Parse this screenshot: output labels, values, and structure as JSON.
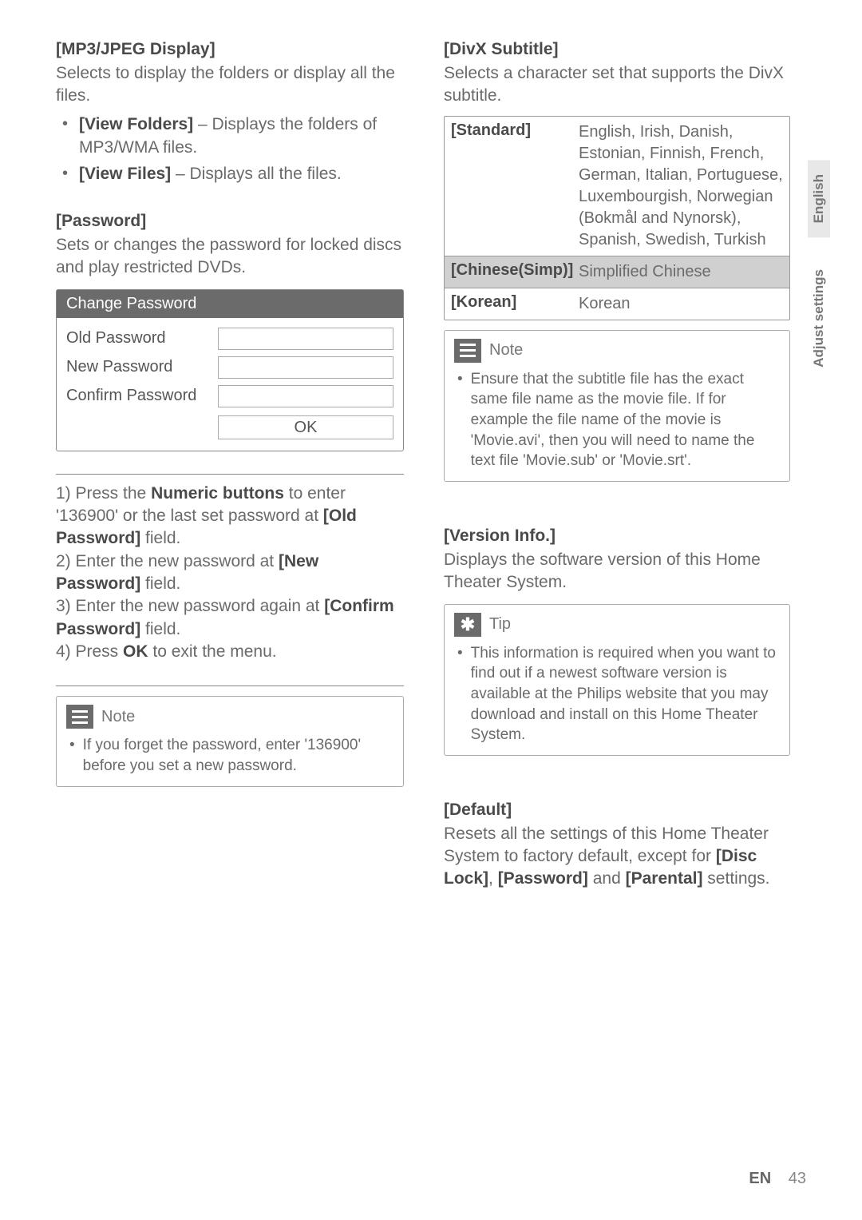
{
  "col_left": {
    "mp3jpeg": {
      "title": "[MP3/JPEG Display]",
      "desc": "Selects to display the folders or display all the files.",
      "items": [
        {
          "bold": "[View Folders]",
          "rest": " – Displays the folders of MP3/WMA files."
        },
        {
          "bold": "[View Files]",
          "rest": " – Displays all the files."
        }
      ]
    },
    "password": {
      "title": "[Password]",
      "desc": "Sets or changes the password for locked discs and play restricted DVDs.",
      "box_header": "Change Password",
      "rows": [
        "Old Password",
        "New Password",
        "Confirm Password"
      ],
      "ok": "OK"
    },
    "steps": {
      "s1": "1) Press the ",
      "s1b": "Numeric buttons",
      "s1c": " to enter '136900' or the last set password at ",
      "s1d": "[Old Password]",
      "s1e": " field.",
      "s2": "2) Enter the new password at ",
      "s2b": "[New Password]",
      "s2c": " field.",
      "s3": "3) Enter the new password again at ",
      "s3b": "[Confirm Password]",
      "s3c": " field.",
      "s4": "4) Press ",
      "s4b": "OK",
      "s4c": " to exit the menu."
    },
    "note": {
      "label": "Note",
      "text": "If you forget the password, enter '136900' before you set a new password."
    }
  },
  "col_right": {
    "divx": {
      "title": "[DivX Subtitle]",
      "desc": "Selects a character set that supports the DivX subtitle.",
      "rows": [
        {
          "k": "[Standard]",
          "v": "English, Irish, Danish, Estonian, Finnish, French, German, Italian, Portuguese, Luxembourgish, Norwegian (Bokmål and Nynorsk), Spanish, Swedish, Turkish"
        },
        {
          "k": "[Chinese(Simp)]",
          "v": "Simplified Chinese"
        },
        {
          "k": "[Korean]",
          "v": "Korean"
        }
      ]
    },
    "note": {
      "label": "Note",
      "text": "Ensure that the subtitle file has the exact same file name as the movie file. If for example the file name of the movie is 'Movie.avi', then you will need to name the text file 'Movie.sub' or 'Movie.srt'."
    },
    "version": {
      "title": "[Version Info.]",
      "desc": "Displays the software version of this Home Theater System."
    },
    "tip": {
      "label": "Tip",
      "text": "This information is required when you want to find out if a newest software version is available at the Philips website that you may download and install on this Home Theater System."
    },
    "default_s": {
      "title": "[Default]",
      "text1": "Resets all the settings of this Home Theater System to factory default, except for ",
      "b1": "[Disc Lock]",
      "t2": ", ",
      "b2": "[Password]",
      "t3": " and ",
      "b3": "[Parental]",
      "t4": " settings."
    }
  },
  "side": {
    "english": "English",
    "adjust": "Adjust settings"
  },
  "footer": {
    "en": "EN",
    "page": "43"
  }
}
